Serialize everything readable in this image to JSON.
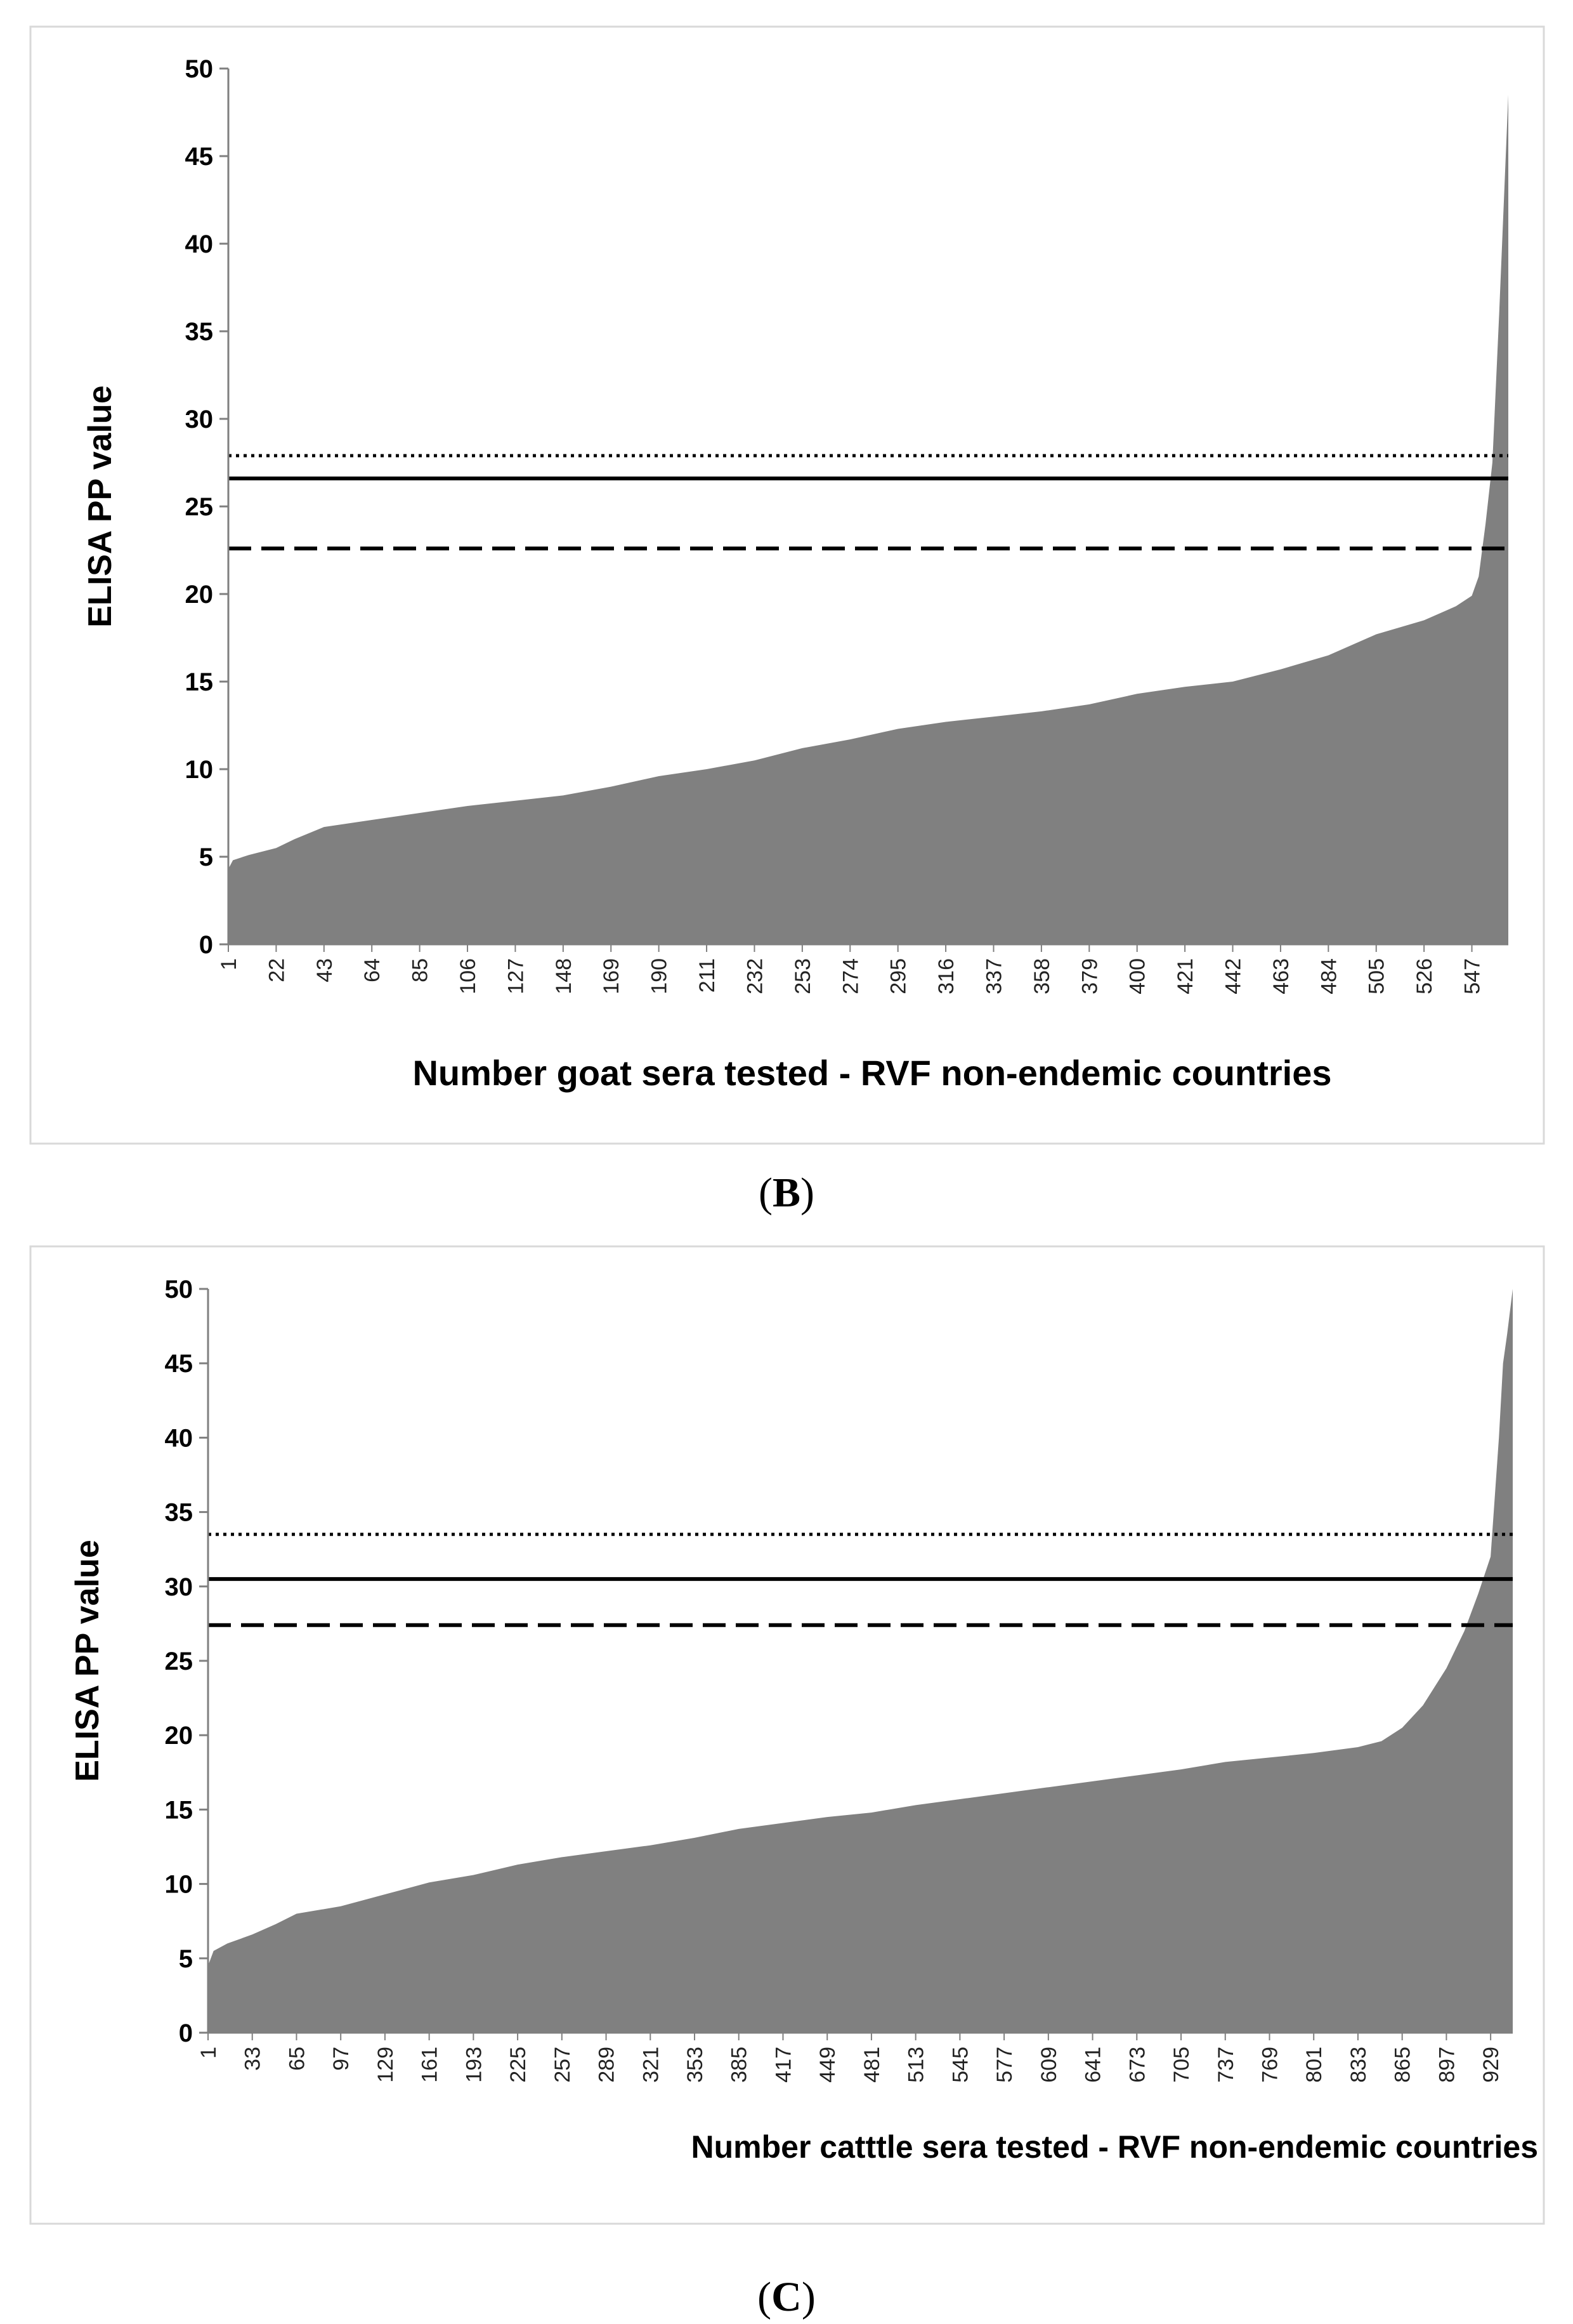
{
  "chart_data": [
    {
      "type": "area",
      "panel_label": "B",
      "ylabel": "ELISA PP value",
      "xlabel": "Number goat sera tested - RVF non-endemic countries",
      "ylim": [
        0,
        50
      ],
      "yticks": [
        0,
        5,
        10,
        15,
        20,
        25,
        30,
        35,
        40,
        45,
        50
      ],
      "xlim": [
        1,
        563
      ],
      "xticks": [
        1,
        22,
        43,
        64,
        85,
        106,
        127,
        148,
        169,
        190,
        211,
        232,
        253,
        274,
        295,
        316,
        337,
        358,
        379,
        400,
        421,
        442,
        463,
        484,
        505,
        526,
        547
      ],
      "grid": false,
      "legend": "none",
      "area_color": "#808080",
      "x": [
        1,
        3,
        10,
        22,
        30,
        43,
        64,
        85,
        106,
        127,
        148,
        169,
        190,
        211,
        232,
        253,
        274,
        295,
        316,
        337,
        358,
        379,
        400,
        421,
        442,
        463,
        484,
        505,
        526,
        540,
        547,
        550,
        553,
        556,
        559,
        563
      ],
      "values": [
        4.3,
        4.8,
        5.1,
        5.5,
        6.0,
        6.7,
        7.1,
        7.5,
        7.9,
        8.2,
        8.5,
        9.0,
        9.6,
        10.0,
        10.5,
        11.2,
        11.7,
        12.3,
        12.7,
        13.0,
        13.3,
        13.7,
        14.3,
        14.7,
        15.0,
        15.7,
        16.5,
        17.7,
        18.5,
        19.3,
        19.9,
        21.0,
        24.0,
        27.5,
        36.0,
        48.5
      ],
      "reference_lines": [
        {
          "style": "dotted",
          "y": 27.9
        },
        {
          "style": "solid",
          "y": 26.6
        },
        {
          "style": "dashed",
          "y": 22.6
        }
      ]
    },
    {
      "type": "area",
      "panel_label": "C",
      "ylabel": "ELISA PP value",
      "xlabel": "Number catttle sera tested - RVF non-endemic countries",
      "ylim": [
        0,
        50
      ],
      "yticks": [
        0,
        5,
        10,
        15,
        20,
        25,
        30,
        35,
        40,
        45,
        50
      ],
      "xlim": [
        1,
        945
      ],
      "xticks": [
        1,
        33,
        65,
        97,
        129,
        161,
        193,
        225,
        257,
        289,
        321,
        353,
        385,
        417,
        449,
        481,
        513,
        545,
        577,
        609,
        641,
        673,
        705,
        737,
        769,
        801,
        833,
        865,
        897,
        929
      ],
      "grid": false,
      "legend": "none",
      "area_color": "#808080",
      "x": [
        1,
        5,
        15,
        33,
        50,
        65,
        97,
        129,
        161,
        193,
        225,
        257,
        289,
        321,
        353,
        385,
        417,
        449,
        481,
        513,
        545,
        577,
        609,
        641,
        673,
        705,
        737,
        769,
        801,
        833,
        850,
        865,
        880,
        897,
        910,
        920,
        929,
        935,
        938,
        941,
        945
      ],
      "values": [
        4.5,
        5.5,
        6.0,
        6.6,
        7.3,
        8.0,
        8.5,
        9.3,
        10.1,
        10.6,
        11.3,
        11.8,
        12.2,
        12.6,
        13.1,
        13.7,
        14.1,
        14.5,
        14.8,
        15.3,
        15.7,
        16.1,
        16.5,
        16.9,
        17.3,
        17.7,
        18.2,
        18.5,
        18.8,
        19.2,
        19.6,
        20.5,
        22.0,
        24.5,
        27.0,
        29.5,
        32.0,
        40.0,
        45.0,
        47.0,
        50.0
      ],
      "reference_lines": [
        {
          "style": "dotted",
          "y": 33.5
        },
        {
          "style": "solid",
          "y": 30.5
        },
        {
          "style": "dashed",
          "y": 27.4
        }
      ]
    }
  ]
}
